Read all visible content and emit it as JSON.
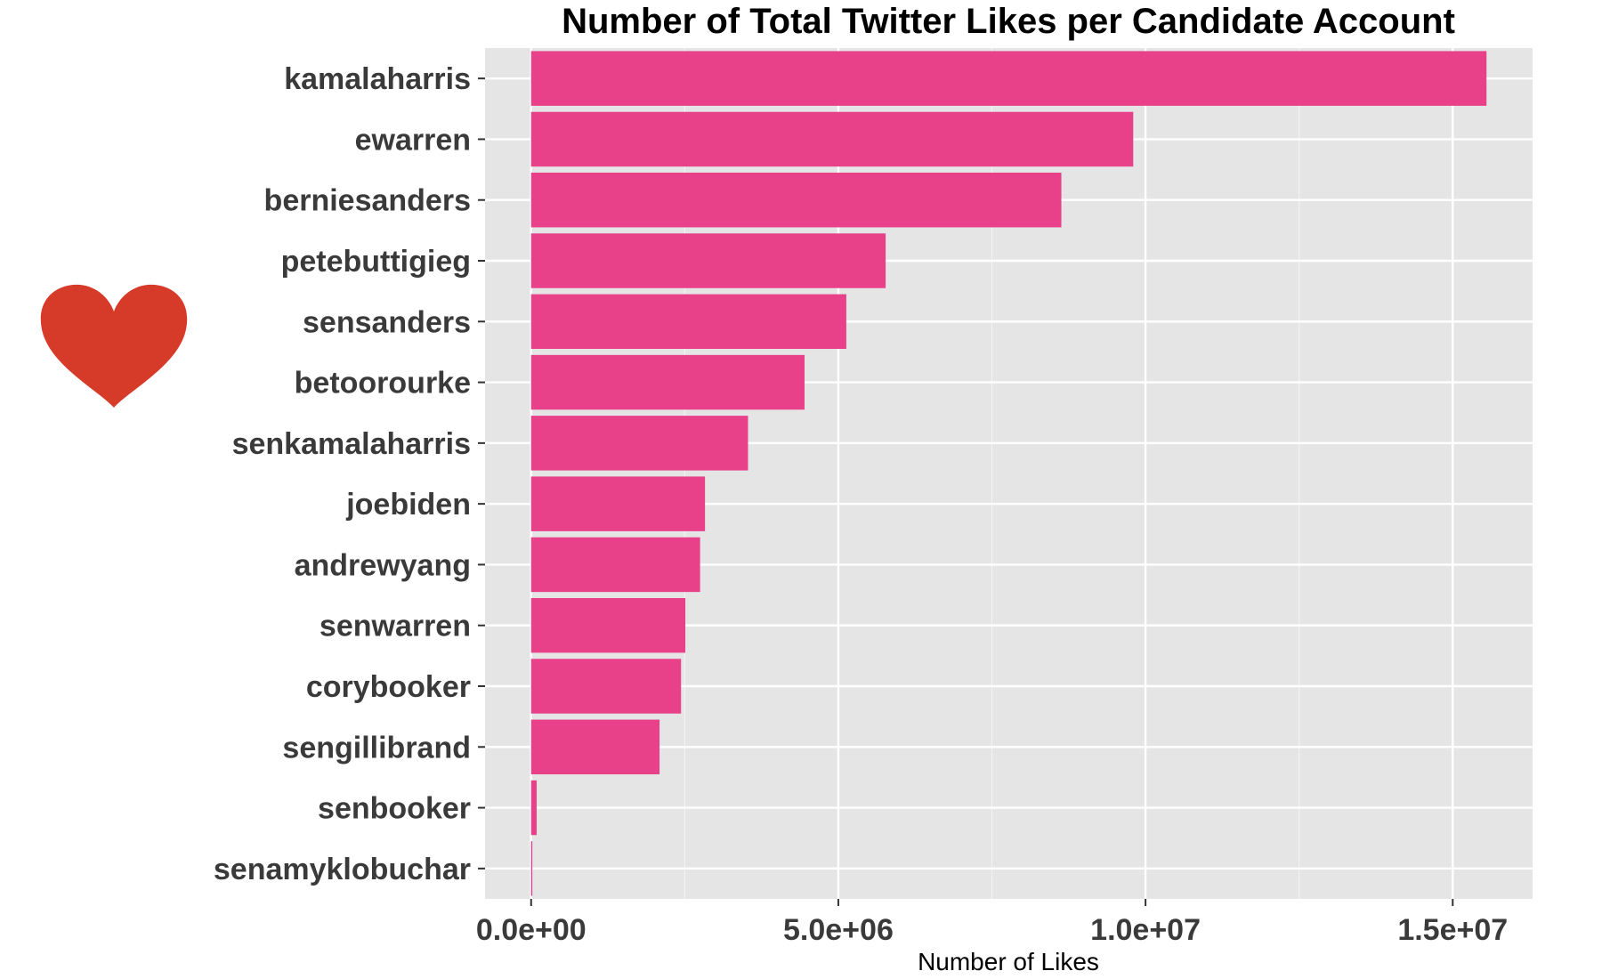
{
  "chart_data": {
    "type": "bar",
    "orientation": "horizontal",
    "title": "Number of Total Twitter Likes per Candidate Account",
    "xlabel": "Number of Likes",
    "ylabel": "",
    "categories": [
      "kamalaharris",
      "ewarren",
      "berniesanders",
      "petebuttigieg",
      "sensanders",
      "betoorourke",
      "senkamalaharris",
      "joebiden",
      "andrewyang",
      "senwarren",
      "corybooker",
      "sengillibrand",
      "senbooker",
      "senamyklobuchar"
    ],
    "values": [
      15550000,
      9800000,
      8630000,
      5770000,
      5130000,
      4450000,
      3530000,
      2830000,
      2750000,
      2510000,
      2440000,
      2090000,
      90000,
      20000
    ],
    "xlim": [
      -750000,
      16300000
    ],
    "xticks": [
      0,
      5000000,
      10000000,
      15000000
    ],
    "xtick_labels": [
      "0.0e+00",
      "5.0e+06",
      "1.0e+07",
      "1.5e+07"
    ],
    "grid": true,
    "legend": "none",
    "decoration": "heart-icon",
    "colors": {
      "bar": "#e8418a",
      "panel_background": "#e5e5e5",
      "grid_major": "#ffffff",
      "grid_minor": "#f2f2f2",
      "heart": "#d63a28"
    }
  }
}
